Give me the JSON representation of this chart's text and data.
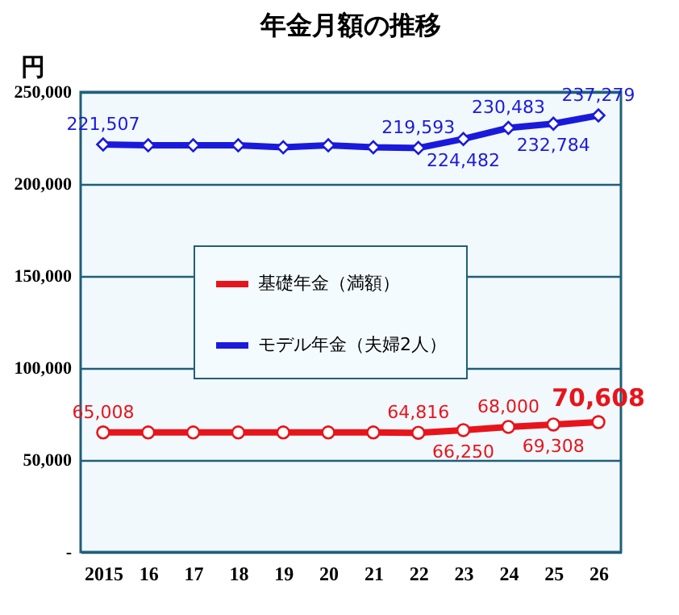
{
  "chart_data": {
    "type": "line",
    "title": "年金月額の推移",
    "ylabel": "円",
    "categories": [
      "2015",
      "16",
      "17",
      "18",
      "19",
      "20",
      "21",
      "22",
      "23",
      "24",
      "25",
      "26"
    ],
    "series": [
      {
        "name": "基礎年金（満額）",
        "color": "#e8141b",
        "marker": "circle",
        "values": [
          65008,
          65000,
          65000,
          65000,
          65000,
          65000,
          65000,
          64816,
          66250,
          68000,
          69308,
          70608
        ],
        "value_labels": [
          "65,008",
          null,
          null,
          null,
          null,
          null,
          null,
          "64,816",
          "66,250",
          "68,000",
          "69,308",
          "70,608"
        ]
      },
      {
        "name": "モデル年金（夫婦2人）",
        "color": "#1a1adc",
        "marker": "diamond",
        "values": [
          221507,
          221000,
          221000,
          221000,
          220000,
          221000,
          220000,
          219593,
          224482,
          230483,
          232784,
          237279
        ],
        "value_labels": [
          "221,507",
          null,
          null,
          null,
          null,
          null,
          null,
          "219,593",
          "224,482",
          "230,483",
          "232,784",
          "237,279"
        ]
      }
    ],
    "ylim": [
      0,
      250000
    ],
    "yticks": [
      {
        "value": 0,
        "label": "-"
      },
      {
        "value": 50000,
        "label": "50,000"
      },
      {
        "value": 100000,
        "label": "100,000"
      },
      {
        "value": 150000,
        "label": "150,000"
      },
      {
        "value": 200000,
        "label": "200,000"
      },
      {
        "value": 250000,
        "label": "250,000"
      }
    ],
    "grid": "y",
    "legend": "left",
    "line_style": "solid"
  }
}
